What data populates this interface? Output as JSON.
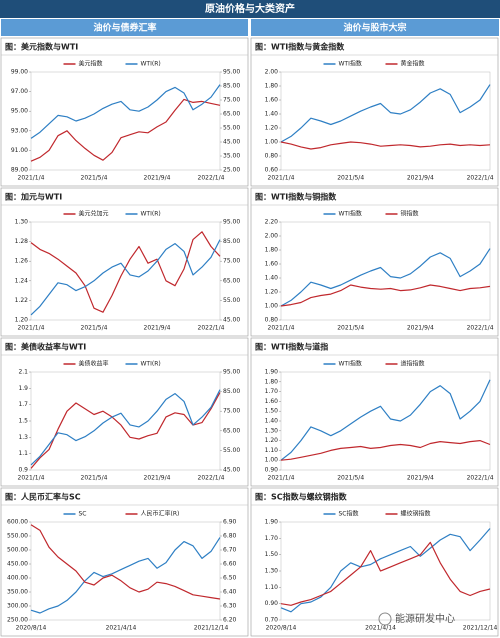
{
  "header": {
    "title": "原油价格与大类资产",
    "left": "油价与债券汇率",
    "right": "油价与股市大宗"
  },
  "watermark": "能源研发中心",
  "chart_data": [
    {
      "type": "line",
      "title": "图：美元指数与WTI",
      "categories": [
        "2021/1/4",
        null,
        null,
        null,
        null,
        null,
        null,
        "2021/5/4",
        null,
        null,
        null,
        null,
        null,
        null,
        "2021/9/4",
        null,
        null,
        null,
        null,
        null,
        "2022/1/4",
        null
      ],
      "series": [
        {
          "name": "美元指数",
          "color": "#c0282d",
          "values": [
            89.9,
            90.3,
            91.0,
            92.5,
            93.0,
            92.0,
            91.2,
            90.5,
            90.0,
            90.8,
            92.3,
            92.6,
            92.9,
            92.8,
            93.4,
            93.9,
            95.1,
            96.2,
            95.9,
            96.0,
            95.8,
            95.6
          ]
        },
        {
          "name": "WTI(R)",
          "color": "#2e7fc4",
          "axis": "y2",
          "values": [
            47.6,
            52,
            58,
            64,
            63,
            60,
            62,
            65,
            69,
            72,
            74,
            68,
            67,
            70,
            75,
            81,
            84,
            80,
            68,
            72,
            77,
            86
          ]
        }
      ],
      "ylim": [
        89,
        99
      ],
      "yticks": [
        {
          "value": 89,
          "label": "89.00"
        },
        {
          "value": 91,
          "label": "91.00"
        },
        {
          "value": 93,
          "label": "93.00"
        },
        {
          "value": 95,
          "label": "95.00"
        },
        {
          "value": 97,
          "label": "97.00"
        },
        {
          "value": 99,
          "label": "99.00"
        }
      ],
      "y2lim": [
        25,
        95
      ],
      "y2ticks": [
        {
          "value": 25,
          "label": "25.00"
        },
        {
          "value": 35,
          "label": "35.00"
        },
        {
          "value": 45,
          "label": "45.00"
        },
        {
          "value": 55,
          "label": "55.00"
        },
        {
          "value": 65,
          "label": "65.00"
        },
        {
          "value": 75,
          "label": "75.00"
        },
        {
          "value": 85,
          "label": "85.00"
        },
        {
          "value": 95,
          "label": "95.00"
        }
      ]
    },
    {
      "type": "line",
      "title": "图：WTI指数与黄金指数",
      "categories": [
        "2021/1/4",
        null,
        null,
        null,
        null,
        null,
        null,
        "2021/5/4",
        null,
        null,
        null,
        null,
        null,
        null,
        "2021/9/4",
        null,
        null,
        null,
        null,
        null,
        "2022/1/4",
        null
      ],
      "series": [
        {
          "name": "WTI指数",
          "color": "#2e7fc4",
          "values": [
            1.0,
            1.08,
            1.2,
            1.34,
            1.3,
            1.25,
            1.3,
            1.37,
            1.44,
            1.5,
            1.55,
            1.42,
            1.4,
            1.46,
            1.57,
            1.7,
            1.76,
            1.68,
            1.42,
            1.5,
            1.6,
            1.82
          ]
        },
        {
          "name": "黄金指数",
          "color": "#c0282d",
          "values": [
            1.0,
            0.97,
            0.93,
            0.9,
            0.92,
            0.96,
            0.98,
            1.0,
            0.99,
            0.97,
            0.94,
            0.95,
            0.96,
            0.95,
            0.93,
            0.94,
            0.96,
            0.97,
            0.95,
            0.96,
            0.95,
            0.96
          ]
        }
      ],
      "ylim": [
        0.6,
        2.0
      ],
      "yticks": [
        {
          "value": 0.6,
          "label": "0.60"
        },
        {
          "value": 0.8,
          "label": "0.80"
        },
        {
          "value": 1.0,
          "label": "1.00"
        },
        {
          "value": 1.2,
          "label": "1.20"
        },
        {
          "value": 1.4,
          "label": "1.40"
        },
        {
          "value": 1.6,
          "label": "1.60"
        },
        {
          "value": 1.8,
          "label": "1.80"
        },
        {
          "value": 2.0,
          "label": "2.00"
        }
      ]
    },
    {
      "type": "line",
      "title": "图：加元与WTI",
      "categories": [
        "2021/1/4",
        null,
        null,
        null,
        null,
        null,
        null,
        "2021/5/4",
        null,
        null,
        null,
        null,
        null,
        null,
        "2021/9/4",
        null,
        null,
        null,
        null,
        null,
        "2022/1/4",
        null
      ],
      "series": [
        {
          "name": "美元兑加元",
          "color": "#c0282d",
          "values": [
            1.279,
            1.272,
            1.268,
            1.262,
            1.255,
            1.248,
            1.235,
            1.212,
            1.208,
            1.225,
            1.245,
            1.262,
            1.275,
            1.258,
            1.262,
            1.24,
            1.235,
            1.252,
            1.282,
            1.29,
            1.275,
            1.265
          ]
        },
        {
          "name": "WTI(R)",
          "color": "#2e7fc4",
          "axis": "y2",
          "values": [
            47.6,
            52,
            58,
            64,
            63,
            60,
            62,
            65,
            69,
            72,
            74,
            68,
            67,
            70,
            75,
            81,
            84,
            80,
            68,
            72,
            77,
            86
          ]
        }
      ],
      "ylim": [
        1.2,
        1.3
      ],
      "yticks": [
        {
          "value": 1.2,
          "label": "1.20"
        },
        1.22,
        1.24,
        1.26,
        1.28,
        {
          "value": 1.3,
          "label": "1.30"
        }
      ],
      "y2lim": [
        45,
        95
      ],
      "y2ticks": [
        {
          "value": 45,
          "label": "45.00"
        },
        {
          "value": 55,
          "label": "55.00"
        },
        {
          "value": 65,
          "label": "65.00"
        },
        {
          "value": 75,
          "label": "75.00"
        },
        {
          "value": 85,
          "label": "85.00"
        },
        {
          "value": 95,
          "label": "95.00"
        }
      ]
    },
    {
      "type": "line",
      "title": "图：WTI指数与铜指数",
      "categories": [
        "2021/1/4",
        null,
        null,
        null,
        null,
        null,
        null,
        "2021/5/4",
        null,
        null,
        null,
        null,
        null,
        null,
        "2021/9/4",
        null,
        null,
        null,
        null,
        null,
        "2022/1/4",
        null
      ],
      "series": [
        {
          "name": "WTI指数",
          "color": "#2e7fc4",
          "values": [
            1.0,
            1.08,
            1.2,
            1.34,
            1.3,
            1.25,
            1.3,
            1.37,
            1.44,
            1.5,
            1.55,
            1.42,
            1.4,
            1.46,
            1.57,
            1.7,
            1.76,
            1.68,
            1.42,
            1.5,
            1.6,
            1.82
          ]
        },
        {
          "name": "铜指数",
          "color": "#c0282d",
          "values": [
            1.0,
            1.02,
            1.05,
            1.12,
            1.15,
            1.17,
            1.22,
            1.3,
            1.27,
            1.25,
            1.24,
            1.25,
            1.22,
            1.23,
            1.26,
            1.3,
            1.28,
            1.25,
            1.22,
            1.25,
            1.26,
            1.28
          ]
        }
      ],
      "ylim": [
        0.8,
        2.2
      ],
      "yticks": [
        {
          "value": 0.8,
          "label": "0.80"
        },
        {
          "value": 1.0,
          "label": "1.00"
        },
        {
          "value": 1.2,
          "label": "1.20"
        },
        {
          "value": 1.4,
          "label": "1.40"
        },
        {
          "value": 1.6,
          "label": "1.60"
        },
        {
          "value": 1.8,
          "label": "1.80"
        },
        {
          "value": 2.0,
          "label": "2.00"
        },
        {
          "value": 2.2,
          "label": "2.20"
        }
      ]
    },
    {
      "type": "line",
      "title": "图：美债收益率与WTI",
      "categories": [
        "2021/1/4",
        null,
        null,
        null,
        null,
        null,
        null,
        "2021/5/4",
        null,
        null,
        null,
        null,
        null,
        null,
        "2021/9/4",
        null,
        null,
        null,
        null,
        null,
        "2022/1/4",
        null
      ],
      "series": [
        {
          "name": "美债收益率",
          "color": "#c0282d",
          "values": [
            0.92,
            1.05,
            1.15,
            1.4,
            1.62,
            1.72,
            1.65,
            1.58,
            1.62,
            1.55,
            1.45,
            1.3,
            1.28,
            1.32,
            1.35,
            1.55,
            1.6,
            1.58,
            1.45,
            1.48,
            1.65,
            1.85
          ]
        },
        {
          "name": "WTI(R)",
          "color": "#2e7fc4",
          "axis": "y2",
          "values": [
            47.6,
            52,
            58,
            64,
            63,
            60,
            62,
            65,
            69,
            72,
            74,
            68,
            67,
            70,
            75,
            81,
            84,
            80,
            68,
            72,
            77,
            86
          ]
        }
      ],
      "ylim": [
        0.9,
        2.1
      ],
      "yticks": [
        0.9,
        1.1,
        1.3,
        1.5,
        1.7,
        1.9,
        2.1
      ],
      "y2lim": [
        45,
        95
      ],
      "y2ticks": [
        {
          "value": 45,
          "label": "45.00"
        },
        {
          "value": 55,
          "label": "55.00"
        },
        {
          "value": 65,
          "label": "65.00"
        },
        {
          "value": 75,
          "label": "75.00"
        },
        {
          "value": 85,
          "label": "85.00"
        },
        {
          "value": 95,
          "label": "95.00"
        }
      ]
    },
    {
      "type": "line",
      "title": "图：WTI指数与道指",
      "categories": [
        "2021/1/4",
        null,
        null,
        null,
        null,
        null,
        null,
        "2021/5/4",
        null,
        null,
        null,
        null,
        null,
        null,
        "2021/9/4",
        null,
        null,
        null,
        null,
        null,
        "2022/1/4",
        null
      ],
      "series": [
        {
          "name": "WTI指数",
          "color": "#2e7fc4",
          "values": [
            1.0,
            1.08,
            1.2,
            1.34,
            1.3,
            1.25,
            1.3,
            1.37,
            1.44,
            1.5,
            1.55,
            1.42,
            1.4,
            1.46,
            1.57,
            1.7,
            1.76,
            1.68,
            1.42,
            1.5,
            1.6,
            1.82
          ]
        },
        {
          "name": "道指指数",
          "color": "#c0282d",
          "values": [
            1.0,
            1.01,
            1.03,
            1.05,
            1.07,
            1.1,
            1.12,
            1.13,
            1.14,
            1.12,
            1.13,
            1.15,
            1.16,
            1.15,
            1.13,
            1.17,
            1.19,
            1.18,
            1.17,
            1.19,
            1.2,
            1.16
          ]
        }
      ],
      "ylim": [
        0.9,
        1.9
      ],
      "yticks": [
        {
          "value": 0.9,
          "label": "0.90"
        },
        {
          "value": 1.0,
          "label": "1.00"
        },
        {
          "value": 1.1,
          "label": "1.10"
        },
        {
          "value": 1.2,
          "label": "1.20"
        },
        {
          "value": 1.3,
          "label": "1.30"
        },
        {
          "value": 1.4,
          "label": "1.40"
        },
        {
          "value": 1.5,
          "label": "1.50"
        },
        {
          "value": 1.6,
          "label": "1.60"
        },
        {
          "value": 1.7,
          "label": "1.70"
        },
        {
          "value": 1.8,
          "label": "1.80"
        },
        {
          "value": 1.9,
          "label": "1.90"
        }
      ]
    },
    {
      "type": "line",
      "title": "图：人民币汇率与SC",
      "categories": [
        "2020/8/14",
        null,
        null,
        null,
        null,
        null,
        null,
        null,
        null,
        null,
        "2021/4/14",
        null,
        null,
        null,
        null,
        null,
        null,
        null,
        null,
        null,
        "2021/12/14",
        null
      ],
      "series": [
        {
          "name": "SC",
          "color": "#2e7fc4",
          "values": [
            285,
            275,
            290,
            300,
            320,
            350,
            390,
            420,
            405,
            415,
            430,
            445,
            460,
            470,
            435,
            455,
            500,
            530,
            515,
            470,
            495,
            545
          ]
        },
        {
          "name": "人民币汇率(R)",
          "color": "#c0282d",
          "axis": "y2",
          "values": [
            6.88,
            6.84,
            6.72,
            6.65,
            6.6,
            6.55,
            6.47,
            6.45,
            6.5,
            6.52,
            6.48,
            6.43,
            6.4,
            6.42,
            6.47,
            6.46,
            6.44,
            6.41,
            6.38,
            6.37,
            6.36,
            6.35
          ]
        }
      ],
      "ylim": [
        250,
        600
      ],
      "yticks": [
        {
          "value": 250,
          "label": "250.00"
        },
        {
          "value": 300,
          "label": "300.00"
        },
        {
          "value": 350,
          "label": "350.00"
        },
        {
          "value": 400,
          "label": "400.00"
        },
        {
          "value": 450,
          "label": "450.00"
        },
        {
          "value": 500,
          "label": "500.00"
        },
        {
          "value": 550,
          "label": "550.00"
        },
        {
          "value": 600,
          "label": "600.00"
        }
      ],
      "y2lim": [
        6.2,
        6.9
      ],
      "y2ticks": [
        {
          "value": 6.2,
          "label": "6.20"
        },
        {
          "value": 6.3,
          "label": "6.30"
        },
        {
          "value": 6.4,
          "label": "6.40"
        },
        {
          "value": 6.5,
          "label": "6.50"
        },
        {
          "value": 6.6,
          "label": "6.60"
        },
        {
          "value": 6.7,
          "label": "6.70"
        },
        {
          "value": 6.8,
          "label": "6.80"
        },
        {
          "value": 6.9,
          "label": "6.90"
        }
      ]
    },
    {
      "type": "line",
      "title": "图：SC指数与螺纹钢指数",
      "categories": [
        "2020/8/14",
        null,
        null,
        null,
        null,
        null,
        null,
        null,
        null,
        null,
        "2021/4/14",
        null,
        null,
        null,
        null,
        null,
        null,
        null,
        null,
        null,
        "2021/12/14",
        null
      ],
      "series": [
        {
          "name": "SC指数",
          "color": "#2e7fc4",
          "values": [
            0.85,
            0.8,
            0.9,
            0.92,
            0.98,
            1.1,
            1.3,
            1.4,
            1.35,
            1.38,
            1.45,
            1.5,
            1.55,
            1.6,
            1.48,
            1.58,
            1.68,
            1.75,
            1.72,
            1.55,
            1.68,
            1.82
          ]
        },
        {
          "name": "螺纹钢指数",
          "color": "#c0282d",
          "values": [
            0.9,
            0.88,
            0.92,
            0.95,
            1.0,
            1.05,
            1.15,
            1.25,
            1.35,
            1.55,
            1.3,
            1.35,
            1.4,
            1.45,
            1.5,
            1.65,
            1.4,
            1.2,
            1.05,
            1.0,
            1.05,
            1.08
          ]
        }
      ],
      "ylim": [
        0.7,
        1.9
      ],
      "yticks": [
        {
          "value": 0.7,
          "label": "0.70"
        },
        {
          "value": 0.9,
          "label": "0.90"
        },
        {
          "value": 1.1,
          "label": "1.10"
        },
        {
          "value": 1.3,
          "label": "1.30"
        },
        {
          "value": 1.5,
          "label": "1.50"
        },
        {
          "value": 1.7,
          "label": "1.70"
        },
        {
          "value": 1.9,
          "label": "1.90"
        }
      ]
    }
  ]
}
